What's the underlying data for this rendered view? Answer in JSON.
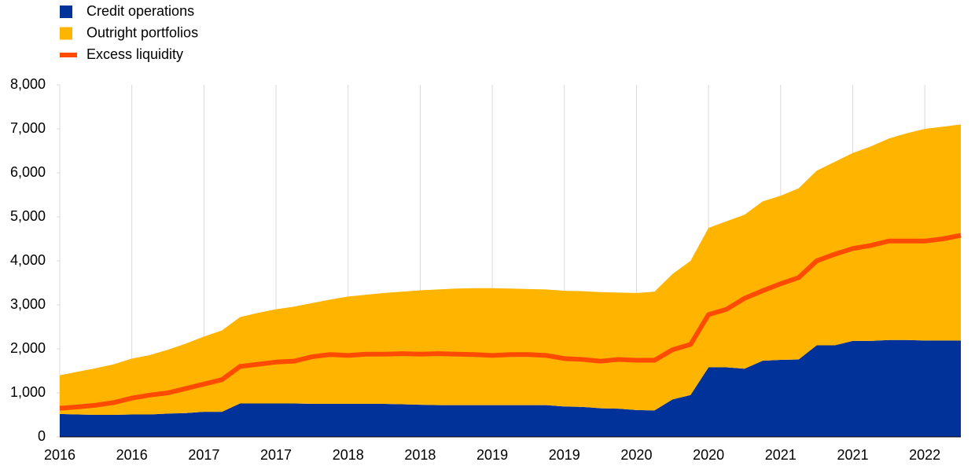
{
  "chart_data": {
    "type": "area",
    "stacked": true,
    "categories": [
      "2016",
      null,
      null,
      null,
      "2016",
      null,
      null,
      null,
      "2017",
      null,
      null,
      null,
      "2017",
      null,
      null,
      null,
      "2018",
      null,
      null,
      null,
      "2018",
      null,
      null,
      null,
      "2019",
      null,
      null,
      null,
      "2019",
      null,
      null,
      null,
      "2020",
      null,
      null,
      null,
      "2020",
      null,
      null,
      null,
      "2021",
      null,
      null,
      null,
      "2021",
      null,
      null,
      null,
      "2022",
      null,
      null
    ],
    "series": [
      {
        "name": "Credit operations",
        "type": "area",
        "color": "#003299",
        "values": [
          520,
          510,
          500,
          500,
          510,
          510,
          530,
          540,
          570,
          570,
          760,
          760,
          760,
          760,
          750,
          750,
          750,
          750,
          750,
          740,
          730,
          720,
          720,
          720,
          720,
          720,
          720,
          720,
          690,
          680,
          650,
          640,
          610,
          600,
          850,
          950,
          1580,
          1580,
          1550,
          1730,
          1750,
          1760,
          2080,
          2080,
          2180,
          2180,
          2200,
          2200,
          2190,
          2190,
          2190
        ]
      },
      {
        "name": "Outright portfolios",
        "type": "area",
        "color": "#ffb400",
        "values": [
          880,
          970,
          1060,
          1150,
          1270,
          1350,
          1450,
          1580,
          1710,
          1850,
          1960,
          2060,
          2140,
          2200,
          2290,
          2370,
          2440,
          2480,
          2520,
          2560,
          2600,
          2630,
          2650,
          2660,
          2660,
          2650,
          2640,
          2630,
          2630,
          2630,
          2640,
          2640,
          2660,
          2700,
          2850,
          3050,
          3170,
          3320,
          3500,
          3620,
          3730,
          3890,
          3970,
          4170,
          4270,
          4420,
          4580,
          4700,
          4810,
          4860,
          4910
        ]
      },
      {
        "name": "Excess liquidity",
        "type": "line",
        "color": "#ff4b00",
        "values": [
          650,
          680,
          720,
          780,
          880,
          950,
          1000,
          1100,
          1200,
          1300,
          1600,
          1650,
          1700,
          1720,
          1820,
          1870,
          1850,
          1880,
          1880,
          1890,
          1880,
          1890,
          1880,
          1870,
          1850,
          1870,
          1870,
          1850,
          1780,
          1760,
          1720,
          1760,
          1740,
          1740,
          1980,
          2100,
          2780,
          2900,
          3150,
          3320,
          3480,
          3620,
          4000,
          4150,
          4280,
          4350,
          4450,
          4450,
          4450,
          4500,
          4580
        ]
      }
    ],
    "ylim": [
      0,
      8000
    ],
    "yticks": [
      0,
      {
        "value": 1000,
        "label": "1,000"
      },
      {
        "value": 2000,
        "label": "2,000"
      },
      {
        "value": 3000,
        "label": "3,000"
      },
      {
        "value": 4000,
        "label": "4,000"
      },
      {
        "value": 5000,
        "label": "5,000"
      },
      {
        "value": 6000,
        "label": "6,000"
      },
      {
        "value": 7000,
        "label": "7,000"
      },
      {
        "value": 8000,
        "label": "8,000"
      }
    ],
    "grid": true
  }
}
